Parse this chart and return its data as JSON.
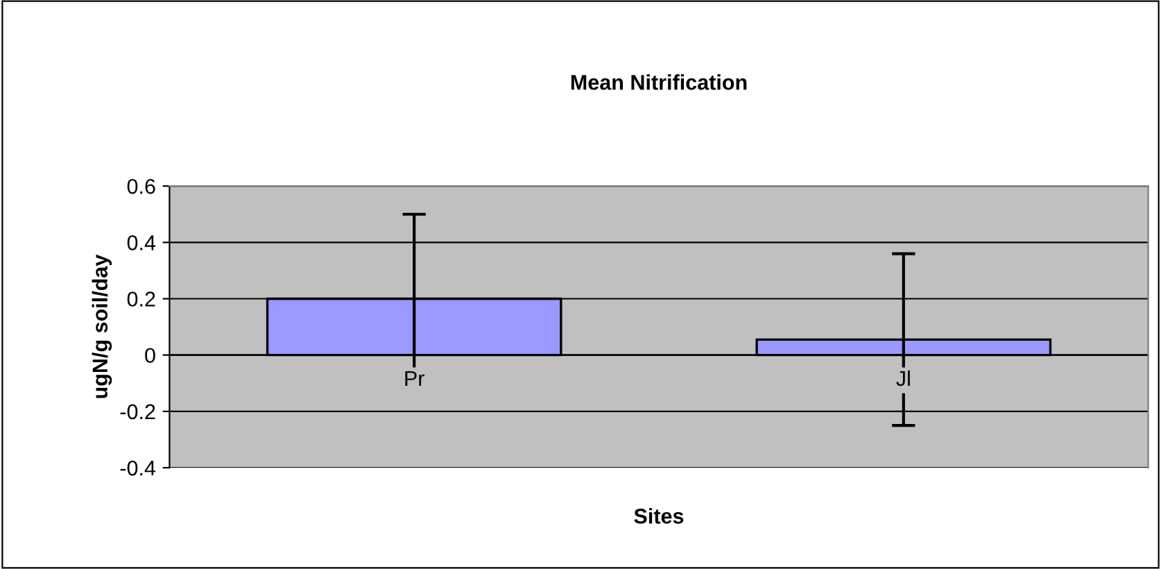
{
  "chart_data": {
    "type": "bar",
    "title": "Mean Nitrification",
    "xlabel": "Sites",
    "ylabel": "ugN/g soil/day",
    "categories": [
      "Pr",
      "Jl"
    ],
    "values": [
      0.2,
      0.055
    ],
    "errors": [
      0.3,
      0.305
    ],
    "color": "#9999ff",
    "ylim": [
      -0.4,
      0.6
    ],
    "yticks": [
      -0.4,
      -0.2,
      0,
      0.2,
      0.4,
      0.6
    ],
    "grid": "y",
    "legend": false
  }
}
